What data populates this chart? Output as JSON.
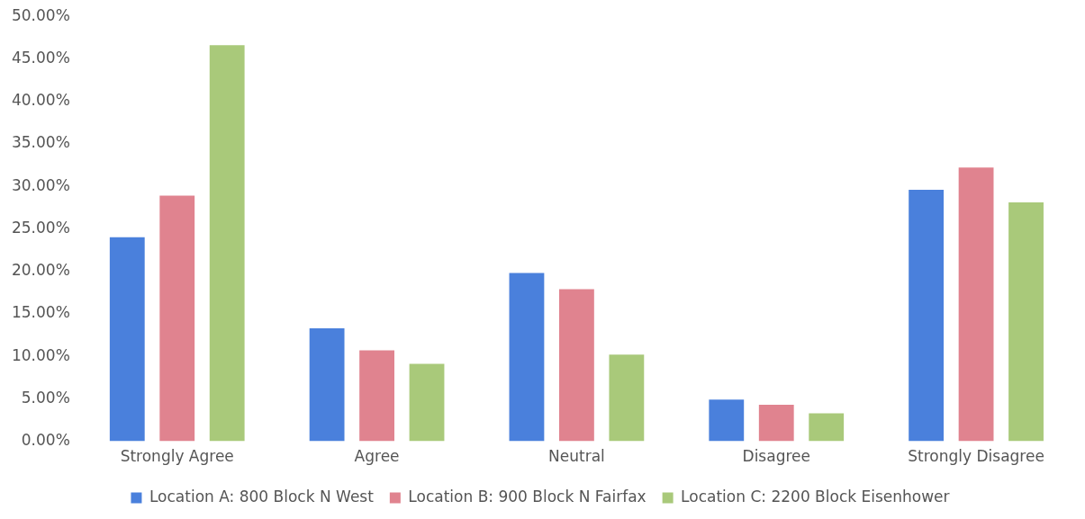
{
  "chart_data": {
    "type": "bar",
    "categories": [
      "Strongly Agree",
      "Agree",
      "Neutral",
      "Disagree",
      "Strongly Disagree"
    ],
    "series": [
      {
        "name": "Location A: 800 Block N West",
        "color": "#4a80dc",
        "values": [
          24.0,
          13.3,
          19.8,
          4.9,
          29.6
        ]
      },
      {
        "name": "Location B: 900 Block N Fairfax",
        "color": "#e0838f",
        "values": [
          28.9,
          10.7,
          17.9,
          4.3,
          32.2
        ]
      },
      {
        "name": "Location C: 2200 Block Eisenhower",
        "color": "#a9c97a",
        "values": [
          46.6,
          9.1,
          10.2,
          3.3,
          28.1
        ]
      }
    ],
    "ylim": [
      0,
      50
    ],
    "yticks": [
      {
        "value": 0,
        "label": "0.00%"
      },
      {
        "value": 5,
        "label": "5.00%"
      },
      {
        "value": 10,
        "label": "10.00%"
      },
      {
        "value": 15,
        "label": "15.00%"
      },
      {
        "value": 20,
        "label": "20.00%"
      },
      {
        "value": 25,
        "label": "25.00%"
      },
      {
        "value": 30,
        "label": "30.00%"
      },
      {
        "value": 35,
        "label": "35.00%"
      },
      {
        "value": 40,
        "label": "40.00%"
      },
      {
        "value": 45,
        "label": "45.00%"
      },
      {
        "value": 50,
        "label": "50.00%"
      }
    ],
    "grid": false,
    "legend": "bottom"
  }
}
